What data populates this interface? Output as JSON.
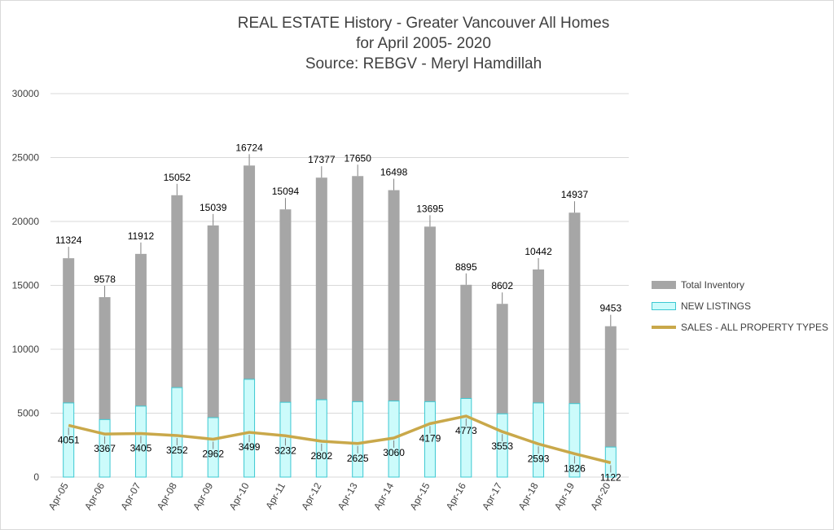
{
  "title": {
    "line1": "REAL ESTATE History - Greater Vancouver All Homes",
    "line2": "for April 2005- 2020",
    "line3": "Source: REBGV  - Meryl Hamdillah"
  },
  "colors": {
    "inventory": "#a6a6a6",
    "listings_fill": "#ccfbfb",
    "listings_border": "#3cc8d2",
    "sales": "#c9a84a",
    "grid": "#d9d9d9",
    "text": "#404040"
  },
  "legend": {
    "inventory": "Total Inventory",
    "listings": "NEW LISTINGS",
    "sales": "SALES - ALL PROPERTY TYPES"
  },
  "chart_data": {
    "type": "bar",
    "title": "REAL ESTATE History - Greater Vancouver All Homes for April 2005- 2020 Source: REBGV  - Meryl Hamdillah",
    "categories": [
      "Apr-05",
      "Apr-06",
      "Apr-07",
      "Apr-08",
      "Apr-09",
      "Apr-10",
      "Apr-11",
      "Apr-12",
      "Apr-13",
      "Apr-14",
      "Apr-15",
      "Apr-16",
      "Apr-17",
      "Apr-18",
      "Apr-19",
      "Apr-20"
    ],
    "yticks": [
      0,
      5000,
      10000,
      15000,
      20000,
      25000,
      30000
    ],
    "ylim": [
      0,
      30000
    ],
    "grid": true,
    "legend_position": "right",
    "series": [
      {
        "name": "Total Inventory",
        "type": "stacked-bar",
        "values": [
          11324,
          9578,
          11912,
          15052,
          15039,
          16724,
          15094,
          17377,
          17650,
          16498,
          13695,
          8895,
          8602,
          10442,
          14937,
          9453
        ]
      },
      {
        "name": "NEW LISTINGS",
        "type": "bar",
        "values": [
          5800,
          4500,
          5550,
          7000,
          4650,
          7650,
          5850,
          6050,
          5900,
          5950,
          5900,
          6150,
          4950,
          5800,
          5750,
          2350
        ]
      },
      {
        "name": "SALES - ALL PROPERTY TYPES",
        "type": "line",
        "values": [
          4051,
          3367,
          3405,
          3252,
          2962,
          3499,
          3232,
          2802,
          2625,
          3060,
          4179,
          4773,
          3553,
          2593,
          1826,
          1122
        ]
      }
    ]
  }
}
